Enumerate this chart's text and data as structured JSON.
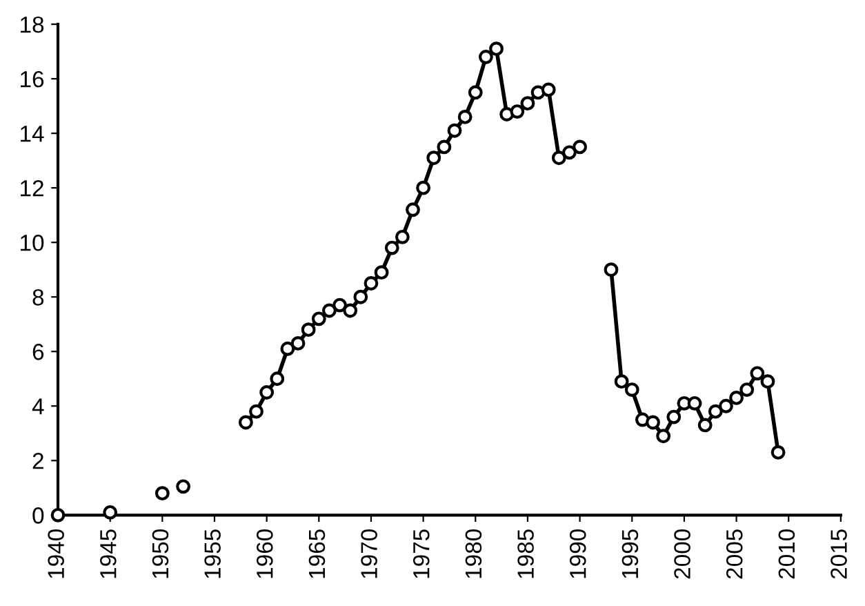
{
  "chart_data": {
    "type": "line",
    "marker": "circle",
    "line_style": "solid",
    "grid": false,
    "legend": false,
    "x": [
      1940,
      1941,
      1942,
      1943,
      1944,
      1945,
      1946,
      1947,
      1948,
      1949,
      1950,
      1951,
      1952,
      1953,
      1954,
      1955,
      1956,
      1957,
      1958,
      1959,
      1960,
      1961,
      1962,
      1963,
      1964,
      1965,
      1966,
      1967,
      1968,
      1969,
      1970,
      1971,
      1972,
      1973,
      1974,
      1975,
      1976,
      1977,
      1978,
      1979,
      1980,
      1981,
      1982,
      1983,
      1984,
      1985,
      1986,
      1987,
      1988,
      1989,
      1990,
      1991,
      1992,
      1993,
      1994,
      1995,
      1996,
      1997,
      1998,
      1999,
      2000,
      2001,
      2002,
      2003,
      2004,
      2005,
      2006,
      2007,
      2008,
      2009
    ],
    "series": [
      {
        "color": "#000000",
        "values": [
          0,
          null,
          null,
          null,
          null,
          0.1,
          null,
          null,
          null,
          null,
          0.8,
          null,
          1.05,
          null,
          null,
          null,
          null,
          null,
          3.4,
          3.8,
          4.5,
          5.0,
          6.1,
          6.3,
          6.8,
          7.2,
          7.5,
          7.7,
          7.5,
          8.0,
          8.5,
          8.9,
          9.8,
          10.2,
          11.2,
          12.0,
          13.1,
          13.5,
          14.1,
          14.6,
          15.5,
          16.8,
          17.1,
          14.7,
          14.8,
          15.1,
          15.5,
          15.6,
          13.1,
          13.3,
          13.5,
          null,
          null,
          9.0,
          4.9,
          4.6,
          3.5,
          3.4,
          2.9,
          3.6,
          4.1,
          4.1,
          3.3,
          3.8,
          4.0,
          4.3,
          4.6,
          5.2,
          4.9,
          2.3
        ]
      }
    ],
    "xlim": [
      1940,
      2015
    ],
    "xticks": [
      1940,
      1945,
      1950,
      1955,
      1960,
      1965,
      1970,
      1975,
      1980,
      1985,
      1990,
      1995,
      2000,
      2005,
      2010,
      2015
    ],
    "ylim": [
      0,
      18
    ],
    "yticks": [
      0,
      2,
      4,
      6,
      8,
      10,
      12,
      14,
      16,
      18
    ]
  }
}
